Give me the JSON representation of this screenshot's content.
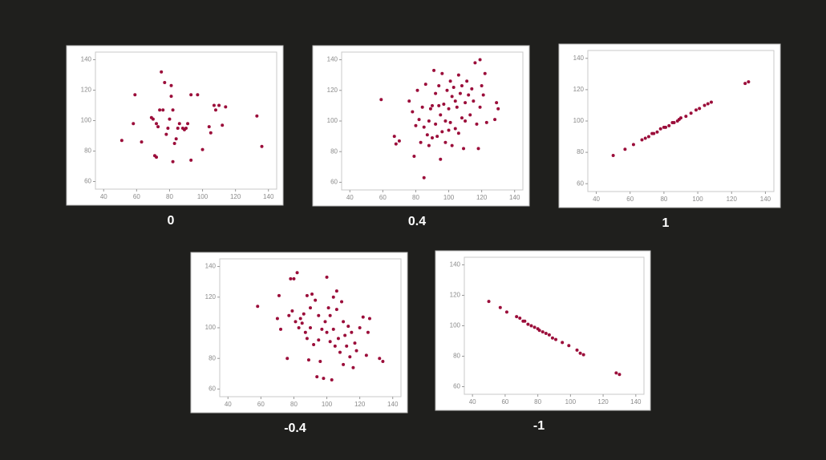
{
  "chart_data": [
    {
      "type": "scatter",
      "title": "0",
      "color": "#9b0d3a",
      "xlim": [
        35,
        145
      ],
      "ylim": [
        55,
        145
      ],
      "xticks": [
        40,
        60,
        80,
        100,
        120,
        140
      ],
      "yticks": [
        60,
        80,
        100,
        120,
        140
      ],
      "x": [
        51,
        58,
        59,
        63,
        69,
        70,
        71,
        72,
        72,
        73,
        74,
        75,
        76,
        77,
        78,
        79,
        80,
        81,
        81,
        82,
        82,
        83,
        84,
        85,
        86,
        88,
        89,
        90,
        91,
        93,
        93,
        97,
        100,
        104,
        105,
        107,
        108,
        110,
        112,
        114,
        133,
        136
      ],
      "values": [
        87,
        98,
        117,
        86,
        102,
        101,
        77,
        76,
        98,
        96,
        107,
        132,
        107,
        125,
        91,
        95,
        101,
        123,
        116,
        107,
        73,
        85,
        88,
        95,
        98,
        95,
        94,
        95,
        98,
        117,
        74,
        117,
        81,
        96,
        92,
        110,
        107,
        110,
        97,
        109,
        103,
        83
      ]
    },
    {
      "type": "scatter",
      "title": "0.4",
      "color": "#9b0d3a",
      "xlim": [
        35,
        145
      ],
      "ylim": [
        55,
        145
      ],
      "xticks": [
        40,
        60,
        80,
        100,
        120,
        140
      ],
      "yticks": [
        60,
        80,
        100,
        120,
        140
      ],
      "x": [
        59,
        67,
        68,
        70,
        76,
        78,
        79,
        80,
        81,
        82,
        83,
        84,
        85,
        85,
        86,
        87,
        88,
        88,
        89,
        90,
        90,
        91,
        92,
        92,
        93,
        94,
        94,
        95,
        95,
        96,
        96,
        97,
        98,
        98,
        99,
        100,
        100,
        101,
        101,
        102,
        102,
        103,
        104,
        104,
        105,
        106,
        106,
        107,
        108,
        108,
        109,
        110,
        110,
        111,
        112,
        113,
        114,
        115,
        116,
        117,
        118,
        119,
        119,
        120,
        121,
        122,
        123,
        128,
        129,
        130
      ],
      "values": [
        114,
        90,
        85,
        87,
        113,
        106,
        77,
        97,
        120,
        101,
        86,
        109,
        63,
        96,
        124,
        91,
        84,
        100,
        108,
        110,
        89,
        133,
        118,
        98,
        90,
        123,
        110,
        104,
        75,
        131,
        93,
        111,
        100,
        86,
        120,
        94,
        108,
        126,
        99,
        116,
        84,
        122,
        95,
        113,
        109,
        130,
        92,
        118,
        102,
        123,
        82,
        112,
        100,
        126,
        117,
        104,
        121,
        113,
        138,
        98,
        82,
        140,
        109,
        123,
        117,
        131,
        99,
        101,
        112,
        108
      ]
    },
    {
      "type": "scatter",
      "title": "1",
      "color": "#9b0d3a",
      "xlim": [
        35,
        145
      ],
      "ylim": [
        55,
        145
      ],
      "xticks": [
        40,
        60,
        80,
        100,
        120,
        140
      ],
      "yticks": [
        60,
        80,
        100,
        120,
        140
      ],
      "x": [
        50,
        57,
        62,
        67,
        69,
        71,
        73,
        74,
        76,
        78,
        80,
        81,
        83,
        85,
        86,
        88,
        89,
        90,
        93,
        96,
        99,
        101,
        104,
        106,
        108,
        128,
        130
      ],
      "values": [
        78,
        82,
        85,
        88,
        89,
        90,
        92,
        92,
        93,
        95,
        96,
        96,
        97,
        99,
        99,
        100,
        101,
        102,
        103,
        105,
        107,
        108,
        110,
        111,
        112,
        124,
        125
      ]
    },
    {
      "type": "scatter",
      "title": "-0.4",
      "color": "#9b0d3a",
      "xlim": [
        35,
        145
      ],
      "ylim": [
        55,
        145
      ],
      "xticks": [
        40,
        60,
        80,
        100,
        120,
        140
      ],
      "yticks": [
        60,
        80,
        100,
        120,
        140
      ],
      "x": [
        58,
        70,
        71,
        72,
        76,
        77,
        78,
        79,
        80,
        81,
        82,
        83,
        84,
        85,
        86,
        87,
        88,
        88,
        89,
        90,
        90,
        91,
        92,
        93,
        94,
        95,
        95,
        96,
        97,
        98,
        99,
        100,
        100,
        101,
        102,
        102,
        103,
        104,
        104,
        105,
        106,
        106,
        107,
        108,
        109,
        110,
        110,
        111,
        112,
        113,
        114,
        115,
        116,
        117,
        118,
        120,
        122,
        124,
        125,
        126,
        132,
        134
      ],
      "values": [
        114,
        106,
        121,
        99,
        80,
        108,
        132,
        111,
        132,
        104,
        136,
        100,
        106,
        103,
        109,
        97,
        93,
        121,
        79,
        113,
        100,
        122,
        89,
        118,
        68,
        108,
        92,
        78,
        99,
        67,
        104,
        97,
        133,
        113,
        91,
        108,
        66,
        99,
        120,
        88,
        112,
        124,
        93,
        84,
        117,
        76,
        104,
        95,
        88,
        101,
        81,
        97,
        74,
        90,
        85,
        100,
        107,
        82,
        97,
        106,
        80,
        78
      ]
    },
    {
      "type": "scatter",
      "title": "-1",
      "color": "#9b0d3a",
      "xlim": [
        35,
        145
      ],
      "ylim": [
        55,
        145
      ],
      "xticks": [
        40,
        60,
        80,
        100,
        120,
        140
      ],
      "yticks": [
        60,
        80,
        100,
        120,
        140
      ],
      "x": [
        50,
        57,
        61,
        67,
        69,
        71,
        72,
        74,
        76,
        78,
        80,
        81,
        83,
        85,
        87,
        89,
        91,
        95,
        99,
        104,
        106,
        108,
        128,
        130
      ],
      "values": [
        116,
        112,
        109,
        106,
        105,
        103,
        103,
        101,
        100,
        99,
        98,
        97,
        96,
        95,
        94,
        92,
        91,
        89,
        87,
        84,
        82,
        81,
        69,
        68
      ]
    }
  ]
}
